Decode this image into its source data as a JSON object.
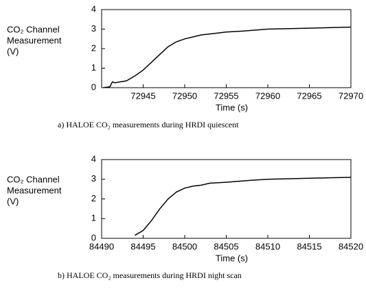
{
  "chart_data": [
    {
      "type": "line",
      "ylabel": [
        "CO₂ Channel",
        "Measurement",
        "(V)"
      ],
      "xlabel": "Time (s)",
      "caption": "a) HALOE CO₂ measurements during HRDI quiescent",
      "color": "#000000",
      "x": [
        72940.2,
        72941,
        72941.3,
        72941.6,
        72943,
        72944,
        72945,
        72946,
        72947,
        72948,
        72949,
        72950,
        72951,
        72952,
        72953,
        72955,
        72957,
        72960,
        72965,
        72970
      ],
      "values": [
        0,
        0.05,
        0.3,
        0.25,
        0.35,
        0.6,
        0.9,
        1.3,
        1.7,
        2.1,
        2.35,
        2.5,
        2.6,
        2.7,
        2.75,
        2.85,
        2.9,
        3.0,
        3.05,
        3.1
      ],
      "xlim": [
        72940,
        72970
      ],
      "ylim": [
        0,
        4
      ],
      "xticks": [
        72945,
        72950,
        72955,
        72960,
        72965,
        72970
      ],
      "yticks": [
        0,
        1,
        2,
        3,
        4
      ]
    },
    {
      "type": "line",
      "ylabel": [
        "CO₂ Channel",
        "Measurement",
        "(V)"
      ],
      "xlabel": "Time (s)",
      "caption": "b) HALOE CO₂ measurements during HRDI night scan",
      "color": "#000000",
      "x": [
        84494,
        84495,
        84496,
        84497,
        84498,
        84499,
        84500,
        84501,
        84502,
        84503,
        84505,
        84508,
        84510,
        84515,
        84520
      ],
      "values": [
        0.15,
        0.4,
        0.9,
        1.5,
        2.0,
        2.35,
        2.55,
        2.65,
        2.7,
        2.8,
        2.85,
        2.95,
        3.0,
        3.05,
        3.1
      ],
      "xlim": [
        84490,
        84520
      ],
      "ylim": [
        0,
        4
      ],
      "xticks": [
        84490,
        84495,
        84500,
        84505,
        84510,
        84515,
        84520
      ],
      "yticks": [
        0,
        1,
        2,
        3,
        4
      ]
    }
  ]
}
